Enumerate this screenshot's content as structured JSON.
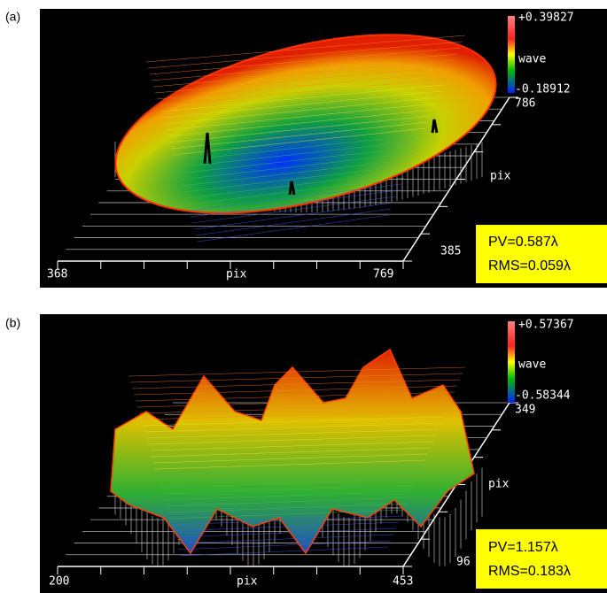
{
  "panels": [
    {
      "label": "(a)",
      "colorbar_max": "+0.39827",
      "colorbar_unit": "wave",
      "colorbar_min": "-0.18912",
      "colorbar_extra": "786",
      "y_axis_label": "pix",
      "y_axis_end": "385",
      "x_axis_start": "368",
      "x_axis_label": "pix",
      "x_axis_end": "769",
      "pv": "PV=0.587λ",
      "rms": "RMS=0.059λ"
    },
    {
      "label": "(b)",
      "colorbar_max": "+0.57367",
      "colorbar_unit": "wave",
      "colorbar_min": "-0.58344",
      "colorbar_extra": "349",
      "y_axis_label": "pix",
      "y_axis_end": "96",
      "x_axis_start": "200",
      "x_axis_label": "pix",
      "x_axis_end": "453",
      "pv": "PV=1.157λ",
      "rms": "RMS=0.183λ"
    }
  ]
}
